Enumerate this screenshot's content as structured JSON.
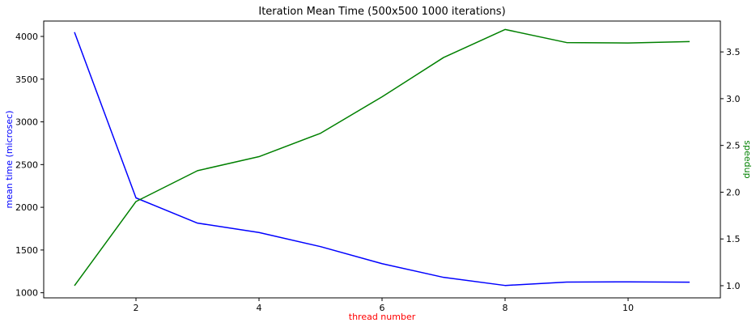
{
  "chart_data": {
    "type": "line",
    "title": "Iteration Mean Time (500x500 1000 iterations)",
    "xlabel": "thread number",
    "ylabel_left": "mean time (microsec)",
    "ylabel_right": "speedup",
    "x": [
      1,
      2,
      3,
      4,
      5,
      6,
      7,
      8,
      9,
      10,
      11
    ],
    "xlim": [
      0.5,
      11.5
    ],
    "xticks": [
      2,
      4,
      6,
      8,
      10
    ],
    "ylim_left": [
      940,
      4180
    ],
    "yticks_left": [
      1000,
      1500,
      2000,
      2500,
      3000,
      3500,
      4000
    ],
    "ylim_right": [
      0.87,
      3.83
    ],
    "yticks_right": [
      1.0,
      1.5,
      2.0,
      2.5,
      3.0,
      3.5
    ],
    "yticks_right_labels": [
      "1.0",
      "1.5",
      "2.0",
      "2.5",
      "3.0",
      "3.5"
    ],
    "grid": false,
    "series": [
      {
        "axis": "left",
        "color": "#0000ff",
        "values": [
          4050,
          2110,
          1815,
          1705,
          1540,
          1340,
          1180,
          1085,
          1125,
          1127,
          1123
        ]
      },
      {
        "axis": "right",
        "color": "#008000",
        "values": [
          1.0,
          1.9,
          2.23,
          2.38,
          2.63,
          3.02,
          3.44,
          3.74,
          3.6,
          3.595,
          3.61
        ]
      }
    ],
    "colors": {
      "xlabel": "#ff0000",
      "ylabel_left": "#0000ff",
      "ylabel_right": "#008000"
    }
  }
}
